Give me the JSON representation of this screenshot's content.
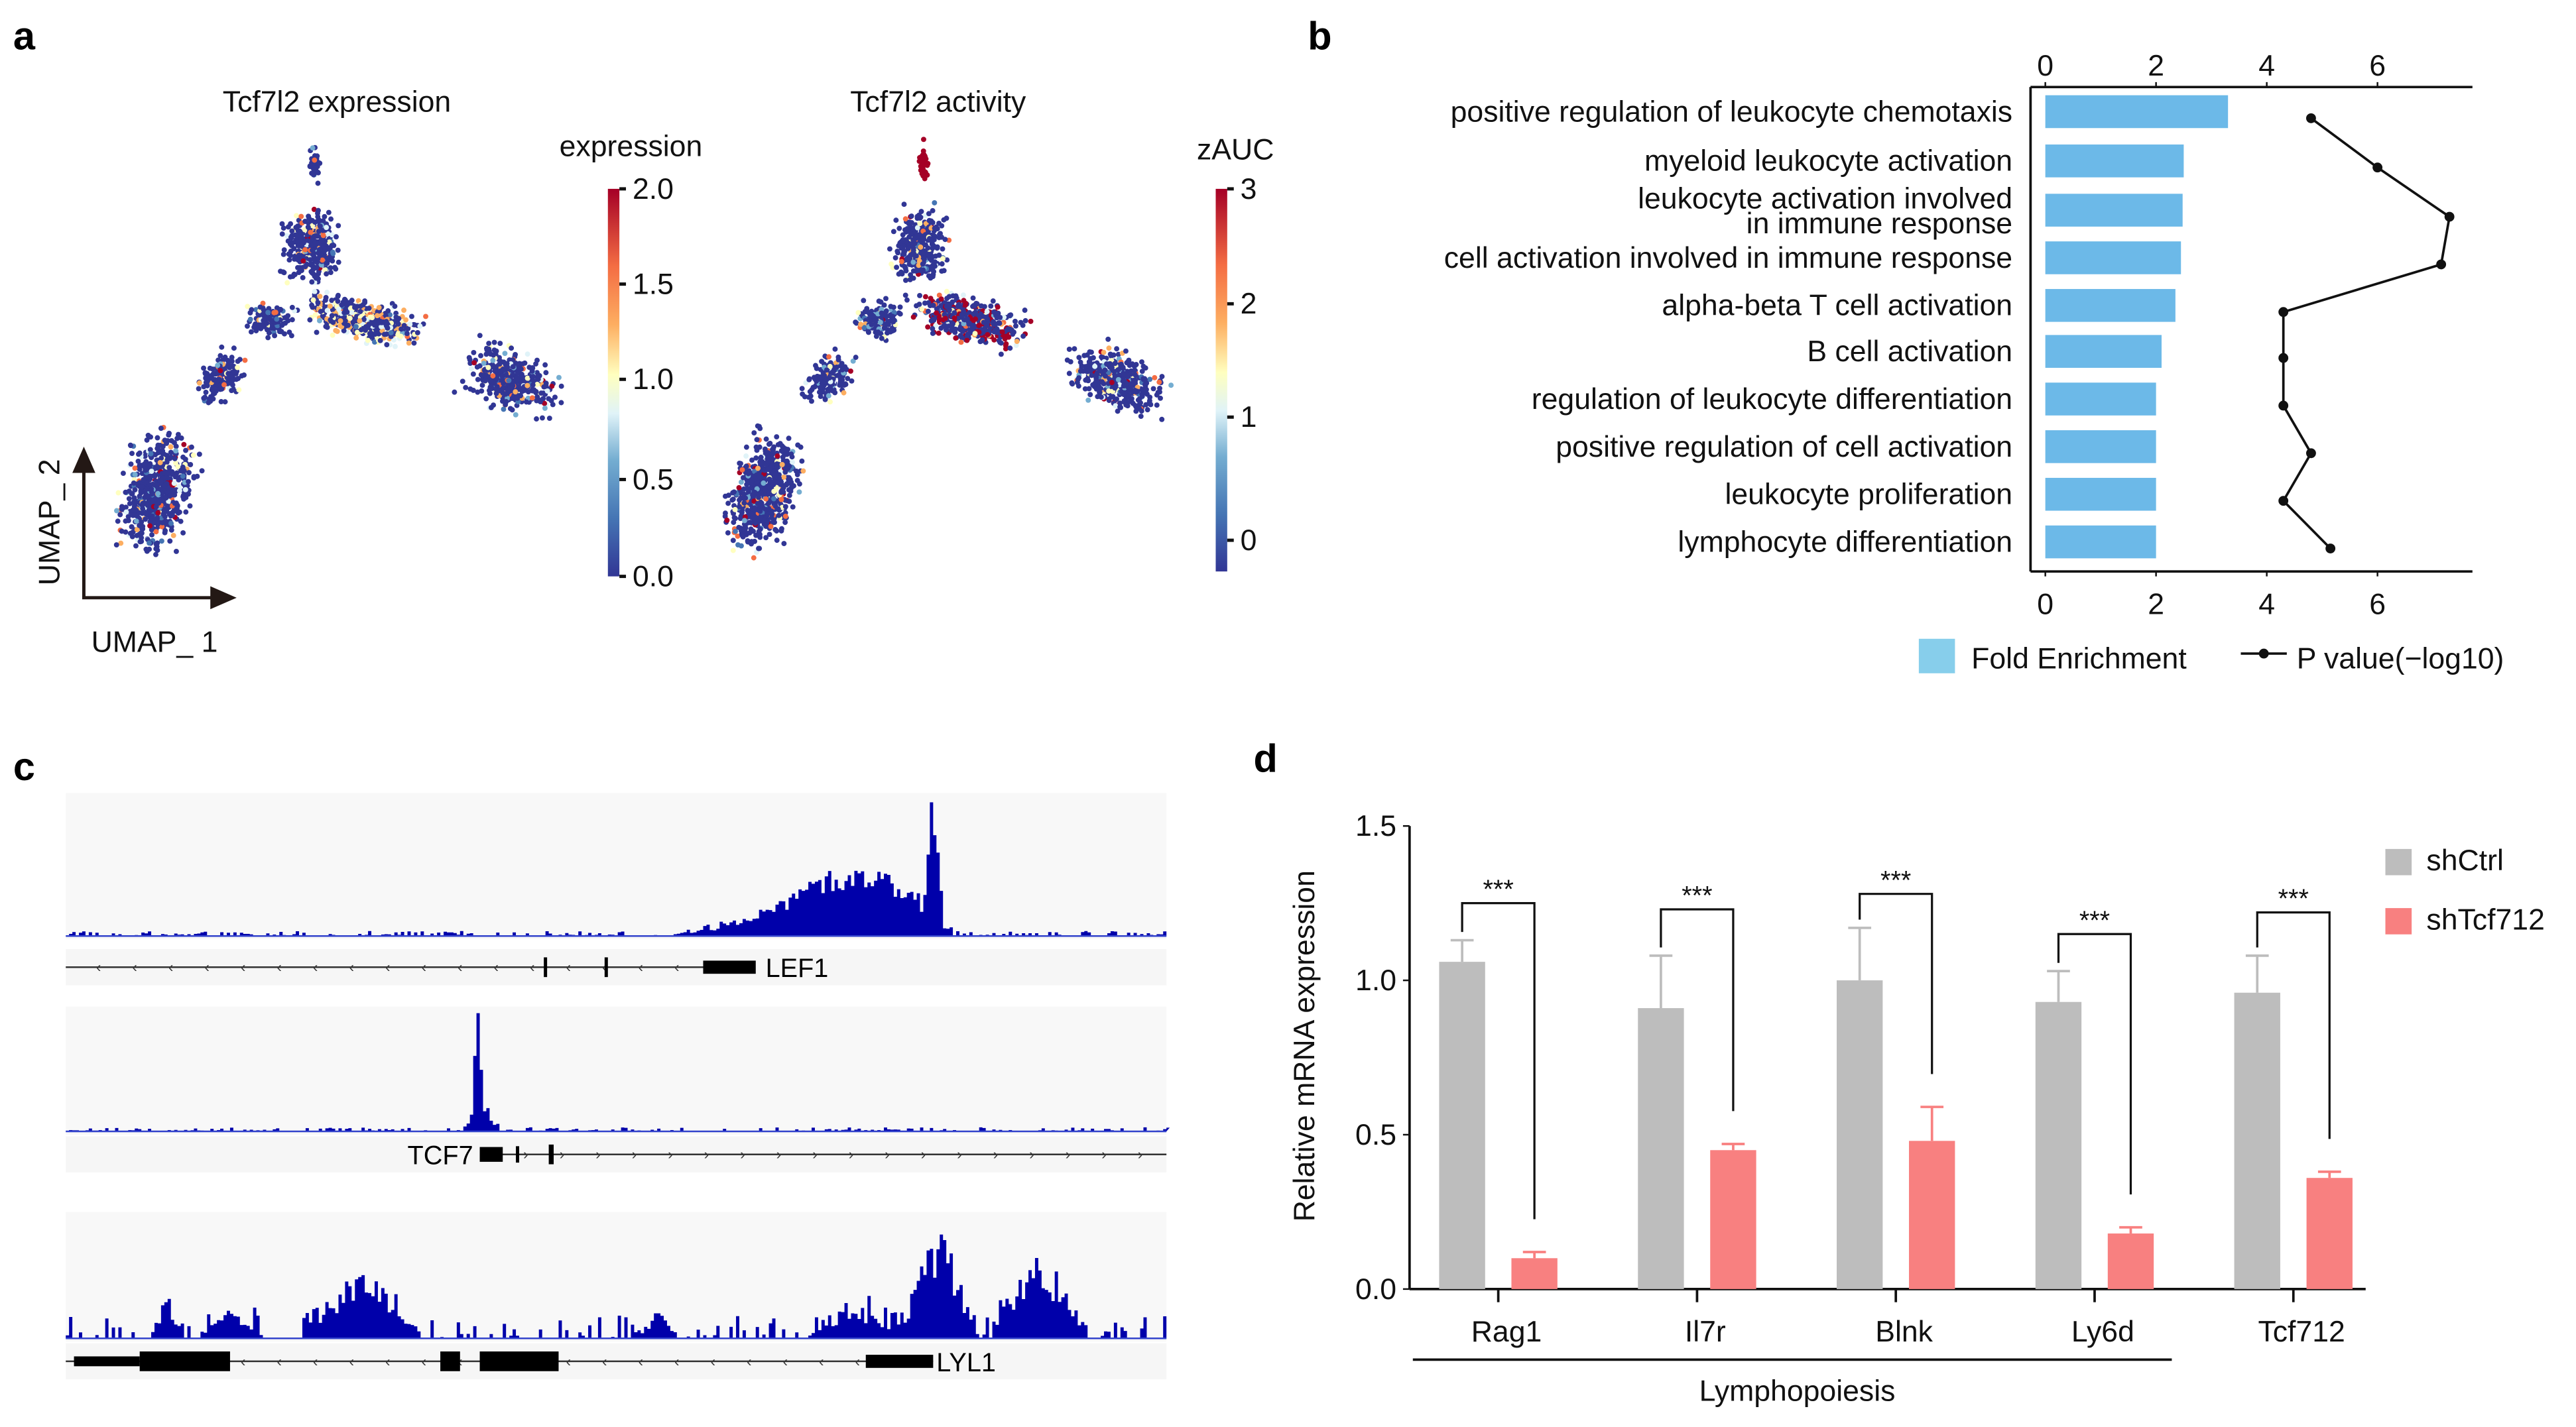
{
  "panels": {
    "a": "a",
    "b": "b",
    "c": "c",
    "d": "d"
  },
  "colors": {
    "enrich_bar": "#6cb9e8",
    "legend_bar": "#87ceeb",
    "ctrl": "#bdbdbd",
    "sh": "#f88080",
    "track": "#0000aa",
    "dark_blue": "#313695",
    "dark_red": "#a50026"
  },
  "chart_data": [
    {
      "id": "a1",
      "type": "scatter",
      "title": "Tcf7l2 expression",
      "colorbar": {
        "label": "expression",
        "ticks": [
          "2.0",
          "1.5",
          "1.0",
          "0.5",
          "0.0"
        ],
        "range": [
          0,
          2
        ]
      },
      "xlabel": "UMAP_ 1",
      "ylabel": "UMAP_ 2"
    },
    {
      "id": "a2",
      "type": "scatter",
      "title": "Tcf7l2 activity",
      "colorbar": {
        "label": "zAUC",
        "ticks": [
          "3",
          "2",
          "1",
          "0"
        ],
        "range": [
          -0.3,
          3
        ]
      }
    },
    {
      "id": "b",
      "type": "bar",
      "categories": [
        "positive regulation of leukocyte chemotaxis",
        "myeloid leukocyte activation",
        "leukocyte activation involved",
        "cell activation involved in immune response",
        "alpha-beta T cell activation",
        "B cell activation",
        "regulation of leukocyte differentiation",
        "positive regulation of cell activation",
        "leukocyte proliferation",
        "lymphocyte differentiation"
      ],
      "category_line2": {
        "2": "in immune response"
      },
      "series": [
        {
          "name": "Fold Enrichment",
          "kind": "bar",
          "values": [
            3.3,
            2.5,
            2.48,
            2.45,
            2.35,
            2.1,
            2.0,
            2.0,
            2.0,
            2.0
          ]
        },
        {
          "name": "P value(−log10)",
          "kind": "line",
          "values": [
            4.8,
            6.0,
            7.3,
            7.15,
            4.3,
            4.3,
            4.3,
            4.8,
            4.3,
            5.15
          ]
        }
      ],
      "xticks": [
        "0",
        "2",
        "4",
        "6"
      ],
      "xlim": [
        0,
        7.8
      ],
      "legend": "bottom"
    },
    {
      "id": "c",
      "type": "area",
      "tracks": [
        {
          "gene": "LEF1",
          "strand": "-"
        },
        {
          "gene": "TCF7",
          "strand": "+"
        },
        {
          "gene": "LYL1",
          "strand": "-"
        }
      ]
    },
    {
      "id": "d",
      "type": "bar",
      "categories": [
        "Rag1",
        "Il7r",
        "Blnk",
        "Ly6d",
        "Tcf712"
      ],
      "series": [
        {
          "name": "shCtrl",
          "values": [
            1.06,
            0.91,
            1.0,
            0.93,
            0.96
          ],
          "errors": [
            0.07,
            0.17,
            0.17,
            0.1,
            0.12
          ]
        },
        {
          "name": "shTcf712",
          "values": [
            0.1,
            0.45,
            0.48,
            0.18,
            0.36
          ],
          "errors": [
            0.02,
            0.02,
            0.11,
            0.02,
            0.02
          ]
        }
      ],
      "significance": [
        {
          "label": "***",
          "level": 1.25
        },
        {
          "label": "***",
          "level": 1.23
        },
        {
          "label": "***",
          "level": 1.28
        },
        {
          "label": "***",
          "level": 1.15
        },
        {
          "label": "***",
          "level": 1.22
        }
      ],
      "ylabel": "Relative mRNA expression",
      "yticks": [
        "0.0",
        "0.5",
        "1.0",
        "1.5"
      ],
      "ylim": [
        0,
        1.5
      ],
      "group_label": "Lymphopoiesis",
      "legend": "top-right"
    }
  ]
}
